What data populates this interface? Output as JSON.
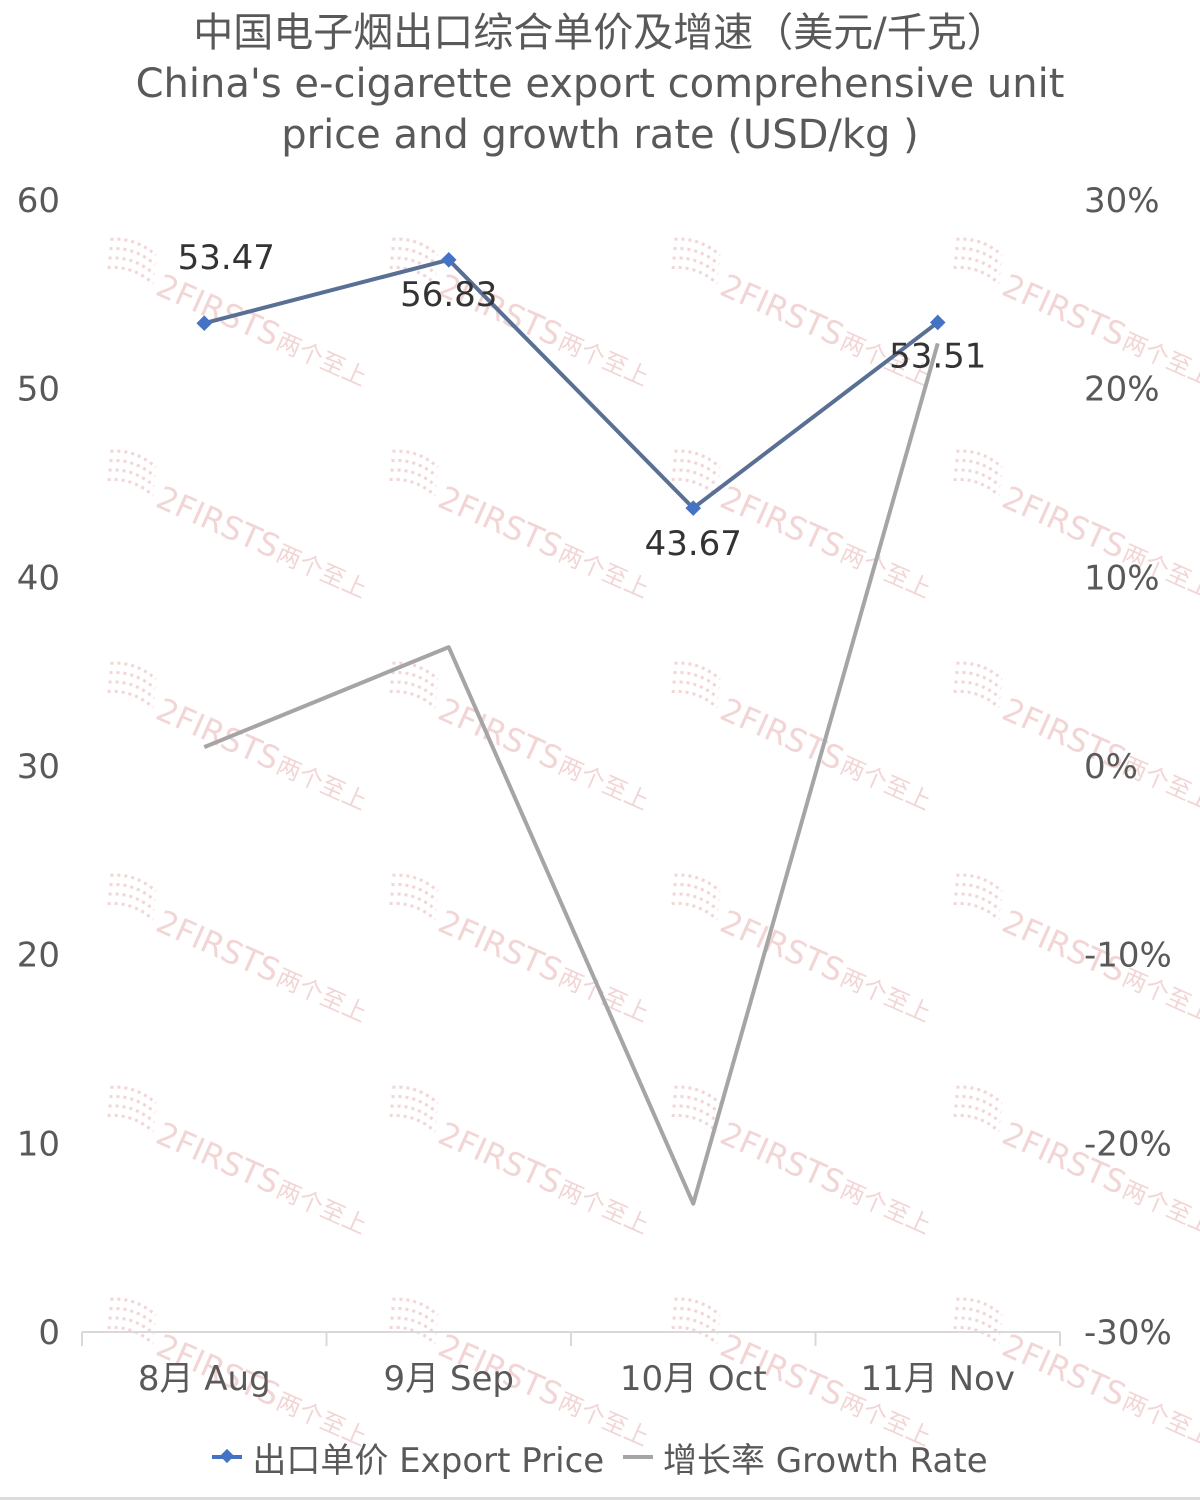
{
  "chart_data": {
    "type": "line",
    "title": "中国电子烟出口综合单价及增速（美元/千克）",
    "subtitle_line1": "China's e-cigarette export comprehensive unit",
    "subtitle_line2": "price and growth rate (USD/kg )",
    "categories": [
      "8月 Aug",
      "9月 Sep",
      "10月 Oct",
      "11月 Nov"
    ],
    "series": [
      {
        "name": "出口单价 Export Price",
        "axis": "left",
        "color": "#4472C4",
        "line_color": "#5A6F94",
        "values": [
          53.47,
          56.83,
          43.67,
          53.51
        ],
        "data_labels": [
          "53.47",
          "56.83",
          "43.67",
          "53.51"
        ]
      },
      {
        "name": "增长率 Growth Rate",
        "axis": "right",
        "color": "#A5A5A5",
        "values": [
          0.01,
          0.063,
          -0.232,
          0.224
        ]
      }
    ],
    "y_left": {
      "min": 0,
      "max": 60,
      "ticks": [
        0,
        10,
        20,
        30,
        40,
        50,
        60
      ],
      "tick_labels": [
        "0",
        "10",
        "20",
        "30",
        "40",
        "50",
        "60"
      ]
    },
    "y_right": {
      "min": -0.3,
      "max": 0.3,
      "ticks": [
        -0.3,
        -0.2,
        -0.1,
        0,
        0.1,
        0.2,
        0.3
      ],
      "tick_labels": [
        "-30%",
        "-20%",
        "-10%",
        "0%",
        "10%",
        "20%",
        "30%"
      ]
    },
    "grid": false,
    "legend_position": "bottom"
  },
  "legend": {
    "price_label": "出口单价 Export Price",
    "growth_label": "增长率 Growth Rate"
  },
  "watermark": {
    "text": "2FIRSTS",
    "cn_text": "两个至上",
    "color": "#E8B4B4"
  }
}
